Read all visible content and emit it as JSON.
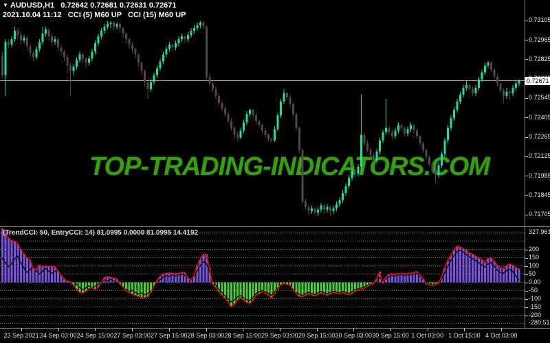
{
  "header": {
    "dropdown_icon": "▼",
    "symbol_line": "AUDUSD,H1   0.72642 0.72681 0.72631 0.72671",
    "info_line": "2021.10.04 11:12   CCI (5) M60 UP   CCI (15) M60 UP"
  },
  "watermark": "TOP-TRADING-INDICATORS.COM",
  "colors": {
    "background": "#000000",
    "bull": "#13e39c",
    "bear": "#564450",
    "price_line": "#a0a0a0",
    "tag_bg": "#ffffff",
    "tag_text": "#000000",
    "axis_text": "#e6e6e6",
    "grid": "#909090",
    "watermark_green": "#35a00c",
    "cci_positive": "#7c50e2",
    "cci_negative": "#3fd52e",
    "cci_trend_line": "#ff0600",
    "cci_entry_line": "#000000"
  },
  "chart_data": {
    "type": "candlestick",
    "symbol": "AUDUSD",
    "timeframe": "H1",
    "price_base": 0.72,
    "pip": 0.0001,
    "price_axis": {
      "ticks": [
        0.73105,
        0.72965,
        0.72825,
        0.72685,
        0.72545,
        0.72405,
        0.72265,
        0.72125,
        0.71985,
        0.71845,
        0.71705
      ],
      "current": 0.72671
    },
    "time_axis": [
      "23 Sep 2021",
      "24 Sep 03:00",
      "24 Sep 15:00",
      "27 Sep 03:00",
      "27 Sep 15:00",
      "28 Sep 03:00",
      "28 Sep 15:00",
      "29 Sep 03:00",
      "29 Sep 15:00",
      "30 Sep 03:00",
      "30 Sep 15:00",
      "1 Oct 03:00",
      "1 Oct 15:00",
      "4 Oct 03:00"
    ],
    "candles_ohlc_pips": [
      [
        85,
        88,
        69,
        71
      ],
      [
        71,
        97,
        56,
        95
      ],
      [
        95,
        97,
        91,
        93
      ],
      [
        93,
        99,
        91,
        97
      ],
      [
        97,
        106,
        95,
        103
      ],
      [
        103,
        105,
        97,
        100
      ],
      [
        100,
        103,
        93,
        96
      ],
      [
        96,
        100,
        94,
        98
      ],
      [
        98,
        99,
        89,
        92
      ],
      [
        92,
        94,
        84,
        87
      ],
      [
        87,
        89,
        81,
        84
      ],
      [
        84,
        92,
        82,
        90
      ],
      [
        90,
        97,
        88,
        95
      ],
      [
        95,
        106,
        93,
        101
      ],
      [
        101,
        106,
        99,
        104
      ],
      [
        104,
        105,
        96,
        99
      ],
      [
        99,
        101,
        92,
        95
      ],
      [
        95,
        99,
        93,
        97
      ],
      [
        97,
        98,
        88,
        91
      ],
      [
        91,
        93,
        85,
        88
      ],
      [
        88,
        89,
        81,
        84
      ],
      [
        84,
        86,
        72,
        78
      ],
      [
        78,
        80,
        56,
        74
      ],
      [
        74,
        79,
        71,
        77
      ],
      [
        77,
        84,
        75,
        82
      ],
      [
        82,
        88,
        80,
        86
      ],
      [
        86,
        87,
        80,
        83
      ],
      [
        83,
        84,
        76,
        80
      ],
      [
        80,
        85,
        78,
        83
      ],
      [
        83,
        90,
        81,
        88
      ],
      [
        88,
        96,
        86,
        94
      ],
      [
        94,
        101,
        92,
        99
      ],
      [
        99,
        105,
        97,
        103
      ],
      [
        103,
        108,
        101,
        106
      ],
      [
        106,
        110,
        104,
        108
      ],
      [
        108,
        110,
        105,
        109
      ],
      [
        109,
        110,
        103,
        106
      ],
      [
        106,
        109,
        104,
        108
      ],
      [
        108,
        109,
        102,
        105
      ],
      [
        105,
        106,
        98,
        101
      ],
      [
        101,
        102,
        94,
        97
      ],
      [
        97,
        98,
        90,
        93
      ],
      [
        93,
        95,
        87,
        90
      ],
      [
        90,
        91,
        83,
        86
      ],
      [
        86,
        87,
        77,
        80
      ],
      [
        80,
        81,
        71,
        74
      ],
      [
        74,
        75,
        63,
        66
      ],
      [
        66,
        67,
        54,
        61
      ],
      [
        61,
        68,
        59,
        66
      ],
      [
        66,
        73,
        64,
        71
      ],
      [
        71,
        78,
        69,
        76
      ],
      [
        76,
        83,
        74,
        81
      ],
      [
        81,
        88,
        79,
        86
      ],
      [
        86,
        92,
        84,
        90
      ],
      [
        90,
        95,
        88,
        93
      ],
      [
        93,
        94,
        88,
        91
      ],
      [
        91,
        96,
        89,
        94
      ],
      [
        94,
        99,
        92,
        97
      ],
      [
        97,
        101,
        95,
        99
      ],
      [
        99,
        100,
        94,
        97
      ],
      [
        97,
        102,
        95,
        100
      ],
      [
        100,
        105,
        98,
        103
      ],
      [
        103,
        107,
        101,
        105
      ],
      [
        105,
        109,
        103,
        107
      ],
      [
        107,
        110,
        105,
        109
      ],
      [
        109,
        110,
        104,
        106
      ],
      [
        106,
        107,
        68,
        70
      ],
      [
        70,
        72,
        63,
        65
      ],
      [
        65,
        67,
        59,
        61
      ],
      [
        61,
        63,
        54,
        56
      ],
      [
        56,
        58,
        49,
        51
      ],
      [
        51,
        53,
        45,
        47
      ],
      [
        47,
        49,
        41,
        43
      ],
      [
        43,
        45,
        36,
        38
      ],
      [
        38,
        40,
        31,
        33
      ],
      [
        33,
        34,
        25,
        28
      ],
      [
        28,
        30,
        24,
        26
      ],
      [
        26,
        33,
        25,
        31
      ],
      [
        31,
        39,
        29,
        37
      ],
      [
        37,
        45,
        35,
        43
      ],
      [
        43,
        47,
        41,
        46
      ],
      [
        46,
        47,
        40,
        42
      ],
      [
        42,
        44,
        36,
        38
      ],
      [
        38,
        39,
        33,
        35
      ],
      [
        35,
        36,
        29,
        31
      ],
      [
        31,
        33,
        26,
        28
      ],
      [
        28,
        29,
        23,
        25
      ],
      [
        25,
        26,
        22,
        24
      ],
      [
        24,
        34,
        23,
        32
      ],
      [
        32,
        44,
        31,
        42
      ],
      [
        42,
        54,
        40,
        52
      ],
      [
        52,
        61,
        50,
        58
      ],
      [
        58,
        59,
        53,
        55
      ],
      [
        55,
        57,
        48,
        50
      ],
      [
        50,
        51,
        41,
        43
      ],
      [
        43,
        44,
        31,
        33
      ],
      [
        33,
        34,
        15,
        17
      ],
      [
        17,
        18,
        -22,
        -20
      ],
      [
        -20,
        -18,
        -26,
        -24
      ],
      [
        -24,
        -22,
        -30,
        -27
      ],
      [
        -27,
        -23,
        -29,
        -25
      ],
      [
        -25,
        -24,
        -30,
        -28
      ],
      [
        -28,
        -24,
        -30.5,
        -26
      ],
      [
        -26,
        -21,
        -28,
        -23
      ],
      [
        -23,
        -22,
        -29,
        -26
      ],
      [
        -26,
        -22,
        -28,
        -24
      ],
      [
        -24,
        -23,
        -30.5,
        -27
      ],
      [
        -27,
        -23,
        -29,
        -25
      ],
      [
        -25,
        -20,
        -27,
        -22
      ],
      [
        -22,
        -17,
        -24,
        -19
      ],
      [
        -19,
        -12,
        -21,
        -14
      ],
      [
        -14,
        -7,
        -16,
        -9
      ],
      [
        -9,
        -1,
        -11,
        -3
      ],
      [
        -3,
        4,
        -5,
        2
      ],
      [
        2,
        3,
        -3,
        0
      ],
      [
        0,
        7,
        -2,
        5
      ],
      [
        5,
        57,
        2,
        28
      ],
      [
        28,
        30,
        20,
        22
      ],
      [
        22,
        24,
        15,
        17
      ],
      [
        17,
        19,
        11,
        13
      ],
      [
        13,
        15,
        8,
        10
      ],
      [
        10,
        18,
        8,
        16
      ],
      [
        16,
        26,
        14,
        24
      ],
      [
        24,
        32,
        22,
        30
      ],
      [
        30,
        54,
        28,
        33
      ],
      [
        33,
        35,
        28,
        30
      ],
      [
        30,
        32,
        25,
        27
      ],
      [
        27,
        33,
        25,
        31
      ],
      [
        31,
        37,
        29,
        35
      ],
      [
        35,
        36,
        31,
        33
      ],
      [
        33,
        34,
        27,
        29
      ],
      [
        29,
        34,
        27,
        32
      ],
      [
        32,
        37,
        30,
        35
      ],
      [
        35,
        36,
        29,
        31
      ],
      [
        31,
        32,
        25,
        27
      ],
      [
        27,
        28,
        20,
        22
      ],
      [
        22,
        23,
        15,
        17
      ],
      [
        17,
        18,
        10,
        12
      ],
      [
        12,
        13,
        5,
        7
      ],
      [
        7,
        8,
        0,
        2
      ],
      [
        2,
        3,
        -7,
        -1
      ],
      [
        -1,
        8,
        -3,
        6
      ],
      [
        6,
        16,
        4,
        14
      ],
      [
        14,
        26,
        12,
        24
      ],
      [
        24,
        35,
        22,
        33
      ],
      [
        33,
        42,
        31,
        40
      ],
      [
        40,
        48,
        38,
        46
      ],
      [
        46,
        54,
        44,
        52
      ],
      [
        52,
        59,
        50,
        57
      ],
      [
        57,
        64,
        55,
        62
      ],
      [
        62,
        67,
        60,
        64
      ],
      [
        64,
        65,
        59,
        61
      ],
      [
        61,
        63,
        56,
        58
      ],
      [
        58,
        64,
        56,
        62
      ],
      [
        62,
        70,
        60,
        68
      ],
      [
        68,
        75,
        66,
        73
      ],
      [
        73,
        80,
        71,
        78
      ],
      [
        78,
        81.4,
        76,
        80
      ],
      [
        80,
        81,
        73,
        75
      ],
      [
        75,
        76,
        68,
        70
      ],
      [
        70,
        72,
        63,
        65
      ],
      [
        65,
        66,
        58,
        60
      ],
      [
        60,
        61,
        51,
        56
      ],
      [
        56,
        62,
        54,
        59
      ],
      [
        59,
        60,
        53,
        58
      ],
      [
        58,
        64,
        56,
        62
      ],
      [
        62,
        67,
        60,
        65
      ],
      [
        65,
        68,
        63,
        67.1
      ]
    ],
    "indicator": {
      "name": "TrendCCI",
      "params": "(TrendCCI: 50, EntryCCI: 14)",
      "values": "81.0995 0.0000 81.0995 14.4192",
      "axis_max": 327.9616,
      "axis_min": -280.515,
      "axis_max_label": "327.9616",
      "axis_min_label": "-280.515",
      "axis_ticks": [
        200,
        150,
        100,
        50,
        0,
        -50,
        -100,
        -150,
        -200
      ],
      "grid_levels": [
        300,
        250,
        200,
        150,
        100,
        50,
        0,
        -50,
        -100,
        -150,
        -200,
        -250
      ],
      "trend_cci": [
        328,
        300,
        270,
        255,
        250,
        235,
        200,
        175,
        150,
        138,
        85,
        78,
        104,
        98,
        96,
        97,
        95,
        96,
        70,
        45,
        20,
        8,
        4,
        -15,
        -40,
        -60,
        -65,
        -55,
        -38,
        -32,
        -42,
        -30,
        -5,
        30,
        33,
        32,
        25,
        22,
        -8,
        -25,
        -48,
        -60,
        -70,
        -78,
        -85,
        -90,
        -92,
        -88,
        -60,
        -25,
        10,
        35,
        50,
        55,
        57,
        55,
        53,
        55,
        58,
        62,
        30,
        12,
        40,
        100,
        140,
        170,
        172,
        90,
        -10,
        -30,
        -55,
        -75,
        -95,
        -115,
        -150,
        -135,
        -110,
        -95,
        -105,
        -122,
        -128,
        -110,
        -78,
        -70,
        -58,
        -60,
        -75,
        -95,
        -70,
        -40,
        -15,
        -8,
        -12,
        -15,
        -40,
        -65,
        -85,
        -88,
        -80,
        -70,
        -75,
        -82,
        -75,
        -65,
        -70,
        -78,
        -72,
        -60,
        -65,
        -70,
        -62,
        -70,
        -75,
        -68,
        -55,
        -48,
        -42,
        -35,
        -25,
        -15,
        -8,
        20,
        65,
        -5,
        30,
        48,
        52,
        50,
        53,
        55,
        52,
        54,
        56,
        58,
        65,
        45,
        25,
        -8,
        -15,
        -20,
        -15,
        -5,
        30,
        88,
        130,
        163,
        195,
        220,
        215,
        205,
        195,
        180,
        172,
        160,
        150,
        140,
        120,
        145,
        150,
        130,
        105,
        90,
        85,
        100,
        112,
        105,
        90,
        81.1
      ],
      "entry_cci": [
        150,
        120,
        95,
        110,
        140,
        160,
        120,
        90,
        60,
        75,
        95,
        70,
        50,
        65,
        85,
        70,
        55,
        65,
        80,
        55,
        35,
        20,
        35,
        15,
        -10,
        -30,
        -45,
        -35,
        -20,
        -35,
        -25,
        -15,
        5,
        15,
        8,
        18,
        10,
        0,
        -15,
        -30,
        -42,
        -55,
        -48,
        -60,
        -70,
        -65,
        -75,
        -70,
        -55,
        -35,
        -10,
        15,
        30,
        40,
        35,
        45,
        38,
        45,
        50,
        45,
        25,
        20,
        35,
        70,
        100,
        125,
        118,
        70,
        20,
        -15,
        -40,
        -60,
        -80,
        -100,
        -118,
        -108,
        -90,
        -80,
        -92,
        -105,
        -112,
        -95,
        -70,
        -58,
        -50,
        -55,
        -65,
        -80,
        -60,
        -35,
        -18,
        -10,
        -18,
        -25,
        -45,
        -60,
        -72,
        -80,
        -70,
        -60,
        -68,
        -75,
        -65,
        -55,
        -62,
        -70,
        -62,
        -52,
        -58,
        -63,
        -55,
        -62,
        -68,
        -58,
        -45,
        -40,
        -35,
        -28,
        -20,
        -12,
        -8,
        0,
        30,
        10,
        20,
        35,
        42,
        38,
        44,
        48,
        42,
        45,
        48,
        50,
        55,
        40,
        20,
        0,
        -10,
        -15,
        -12,
        -5,
        15,
        55,
        95,
        130,
        160,
        185,
        195,
        185,
        170,
        155,
        145,
        132,
        120,
        105,
        92,
        110,
        120,
        100,
        75,
        60,
        55,
        70,
        80,
        68,
        40,
        14.4
      ]
    }
  }
}
